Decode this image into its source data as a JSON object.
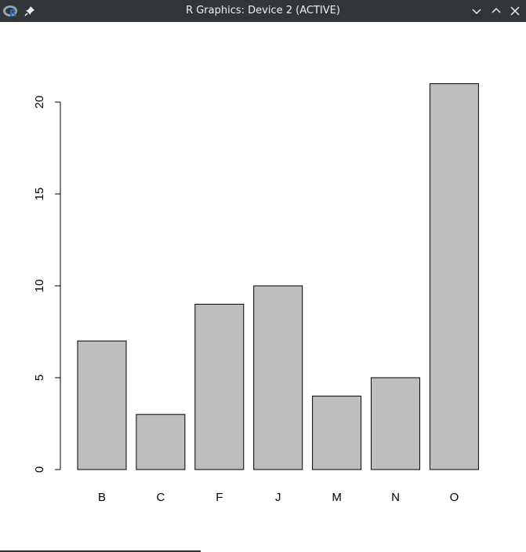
{
  "window": {
    "title": "R Graphics: Device 2 (ACTIVE)",
    "icons": {
      "app": "r-logo-icon",
      "pin": "pin-icon",
      "minimize": "chevron-down-icon",
      "maximize": "chevron-up-icon",
      "close": "close-icon"
    },
    "colors": {
      "titlebar": "#31363b",
      "title_text": "#eff0f1",
      "bar_fill": "#bebebe",
      "bar_stroke": "#000000"
    }
  },
  "chart_data": {
    "type": "bar",
    "categories": [
      "B",
      "C",
      "F",
      "J",
      "M",
      "N",
      "O"
    ],
    "values": [
      7,
      3,
      9,
      10,
      4,
      5,
      21
    ],
    "title": "",
    "xlabel": "",
    "ylabel": "",
    "ylim": [
      0,
      21
    ],
    "yticks": [
      0,
      5,
      10,
      15,
      20
    ],
    "grid": false,
    "legend": "none"
  }
}
